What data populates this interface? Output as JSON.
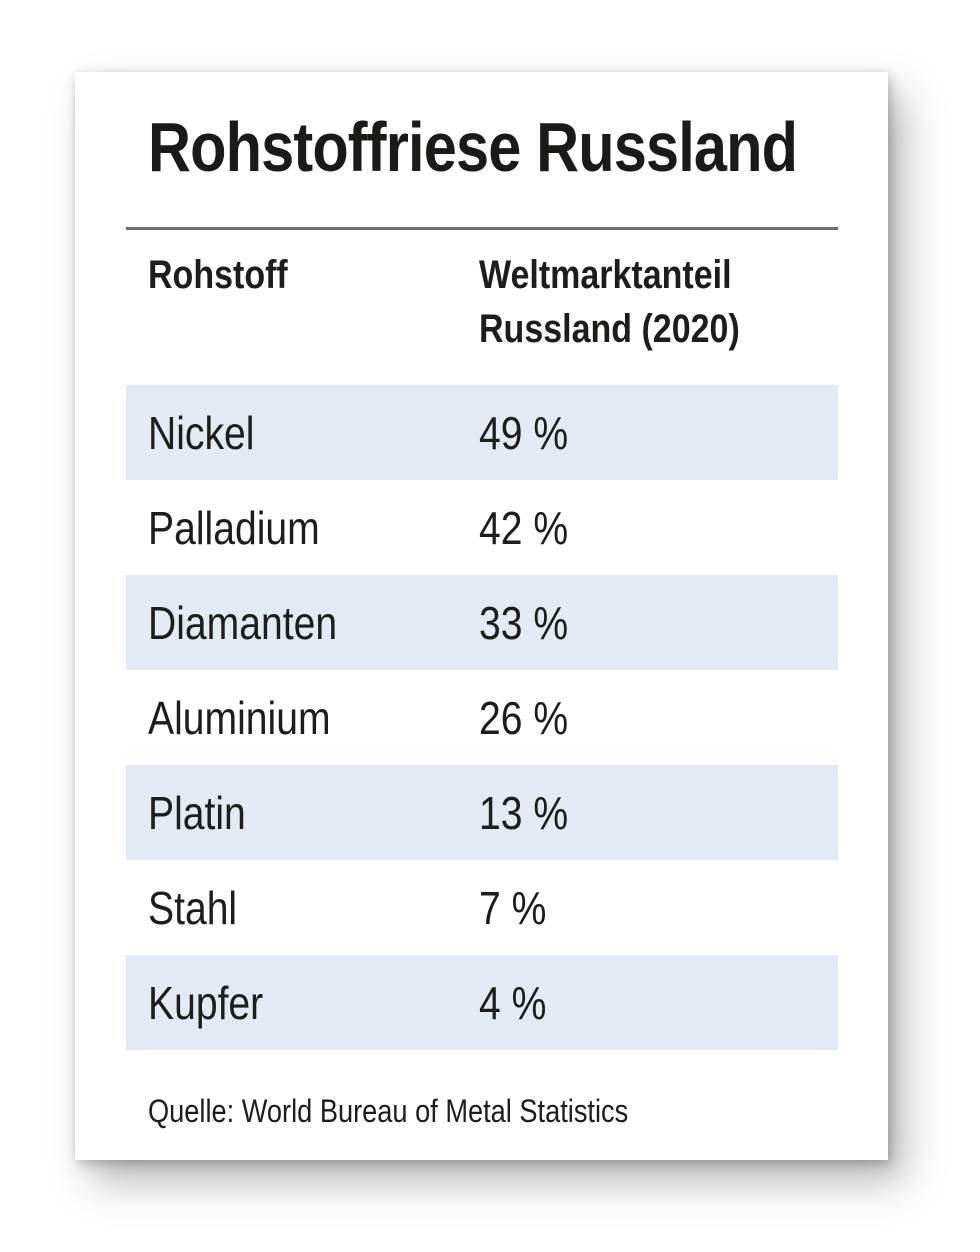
{
  "title": "Rohstoffriese Russland",
  "table": {
    "col1_header": "Rohstoff",
    "col2_header": "Weltmarktanteil Russland (2020)",
    "rows": [
      {
        "name": "Nickel",
        "value": "49 %"
      },
      {
        "name": "Palladium",
        "value": "42 %"
      },
      {
        "name": "Diamanten",
        "value": "33 %"
      },
      {
        "name": "Aluminium",
        "value": "26 %"
      },
      {
        "name": "Platin",
        "value": "13 %"
      },
      {
        "name": "Stahl",
        "value": "7 %"
      },
      {
        "name": "Kupfer",
        "value": "4 %"
      }
    ]
  },
  "source": "Quelle: World Bureau of Metal Statistics",
  "colors": {
    "row_highlight": "#e4eaf4",
    "rule": "#6e6e6e",
    "text": "#1d1d1b",
    "card_background": "#ffffff"
  },
  "chart_data": {
    "type": "table",
    "title": "Rohstoffriese Russland",
    "columns": [
      "Rohstoff",
      "Weltmarktanteil Russland (2020)"
    ],
    "categories": [
      "Nickel",
      "Palladium",
      "Diamanten",
      "Aluminium",
      "Platin",
      "Stahl",
      "Kupfer"
    ],
    "values": [
      49,
      42,
      33,
      26,
      13,
      7,
      4
    ],
    "unit": "%",
    "source": "Quelle: World Bureau of Metal Statistics",
    "layout": "alternating row highlight, values right column, no gridlines"
  }
}
